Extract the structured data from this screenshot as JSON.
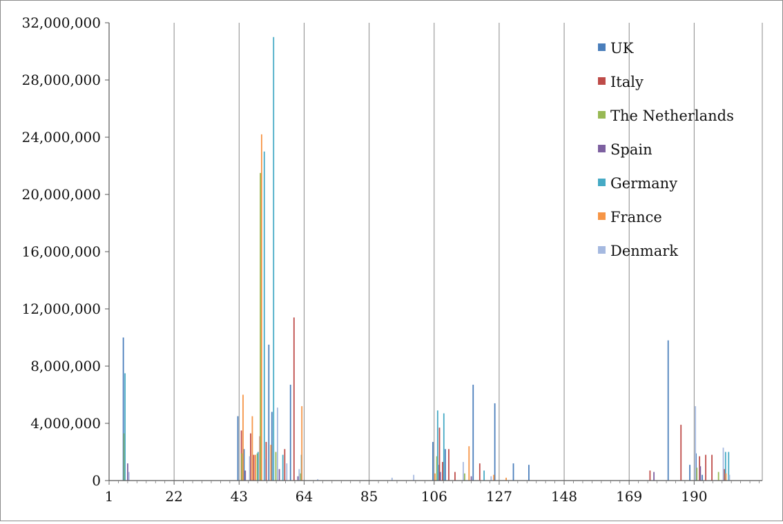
{
  "chart_data": {
    "type": "bar",
    "title": "",
    "xlabel": "",
    "ylabel": "",
    "xlim": [
      1,
      212
    ],
    "ylim": [
      0,
      32000000
    ],
    "x_ticks": [
      1,
      22,
      43,
      64,
      85,
      106,
      127,
      148,
      169,
      190
    ],
    "x_tick_labels": [
      "1",
      "22",
      "43",
      "64",
      "85",
      "106",
      "127",
      "148",
      "169",
      "190"
    ],
    "y_ticks": [
      0,
      4000000,
      8000000,
      12000000,
      16000000,
      20000000,
      24000000,
      28000000,
      32000000
    ],
    "y_tick_labels": [
      "0",
      "4,000,000",
      "8,000,000",
      "12,000,000",
      "16,000,000",
      "20,000,000",
      "24,000,000",
      "28,000,000",
      "32,000,000"
    ],
    "grid": "vertical",
    "legend_position": "top-right",
    "colors": {
      "UK": "#4a7ebb",
      "Italy": "#be4b48",
      "The Netherlands": "#98b954",
      "Spain": "#7d60a0",
      "Germany": "#46aac5",
      "France": "#f69546",
      "Denmark": "#a5b9e0"
    },
    "series": [
      {
        "name": "UK",
        "points": [
          [
            6,
            10000000
          ],
          [
            43,
            4500000
          ],
          [
            45,
            2200000
          ],
          [
            47,
            1200000
          ],
          [
            53,
            9500000
          ],
          [
            54,
            4800000
          ],
          [
            60,
            6700000
          ],
          [
            106,
            2700000
          ],
          [
            108,
            1100000
          ],
          [
            110,
            2200000
          ],
          [
            119,
            6700000
          ],
          [
            126,
            5400000
          ],
          [
            132,
            1200000
          ],
          [
            137,
            1100000
          ],
          [
            182,
            9800000
          ],
          [
            189,
            1100000
          ],
          [
            191,
            1900000
          ],
          [
            193,
            400000
          ]
        ]
      },
      {
        "name": "Italy",
        "points": [
          [
            44,
            3500000
          ],
          [
            47,
            3300000
          ],
          [
            48,
            1800000
          ],
          [
            50,
            3100000
          ],
          [
            52,
            2700000
          ],
          [
            58,
            2200000
          ],
          [
            61,
            11400000
          ],
          [
            108,
            3700000
          ],
          [
            109,
            1300000
          ],
          [
            111,
            2200000
          ],
          [
            113,
            600000
          ],
          [
            121,
            1200000
          ],
          [
            176,
            700000
          ],
          [
            186,
            3900000
          ],
          [
            192,
            1700000
          ],
          [
            194,
            1800000
          ],
          [
            196,
            1800000
          ],
          [
            200,
            800000
          ]
        ]
      },
      {
        "name": "The Netherlands",
        "points": [
          [
            6,
            3300000
          ],
          [
            44,
            1900000
          ],
          [
            49,
            1900000
          ],
          [
            50,
            21500000
          ],
          [
            55,
            2000000
          ],
          [
            63,
            500000
          ],
          [
            107,
            1700000
          ],
          [
            116,
            500000
          ],
          [
            191,
            900000
          ],
          [
            198,
            600000
          ]
        ]
      },
      {
        "name": "Spain",
        "points": [
          [
            7,
            1200000
          ],
          [
            45,
            700000
          ],
          [
            56,
            800000
          ],
          [
            62,
            300000
          ],
          [
            108,
            600000
          ],
          [
            118,
            300000
          ],
          [
            177,
            600000
          ],
          [
            192,
            1000000
          ]
        ]
      },
      {
        "name": "Germany",
        "points": [
          [
            6,
            7500000
          ],
          [
            49,
            2000000
          ],
          [
            51,
            23000000
          ],
          [
            54,
            31000000
          ],
          [
            57,
            1800000
          ],
          [
            63,
            1800000
          ],
          [
            107,
            4900000
          ],
          [
            109,
            4700000
          ],
          [
            122,
            700000
          ],
          [
            200,
            2000000
          ],
          [
            201,
            2000000
          ]
        ]
      },
      {
        "name": "France",
        "points": [
          [
            44,
            6000000
          ],
          [
            47,
            4500000
          ],
          [
            48,
            1800000
          ],
          [
            50,
            24200000
          ],
          [
            53,
            2500000
          ],
          [
            63,
            5200000
          ],
          [
            106,
            500000
          ],
          [
            117,
            2400000
          ],
          [
            125,
            400000
          ],
          [
            129,
            200000
          ],
          [
            200,
            500000
          ]
        ]
      },
      {
        "name": "Denmark",
        "points": [
          [
            7,
            600000
          ],
          [
            46,
            1700000
          ],
          [
            51,
            1500000
          ],
          [
            55,
            5100000
          ],
          [
            58,
            1200000
          ],
          [
            62,
            800000
          ],
          [
            68,
            100000
          ],
          [
            92,
            200000
          ],
          [
            99,
            400000
          ],
          [
            115,
            1300000
          ],
          [
            124,
            300000
          ],
          [
            190,
            5200000
          ],
          [
            199,
            2300000
          ],
          [
            201,
            400000
          ]
        ]
      }
    ]
  }
}
